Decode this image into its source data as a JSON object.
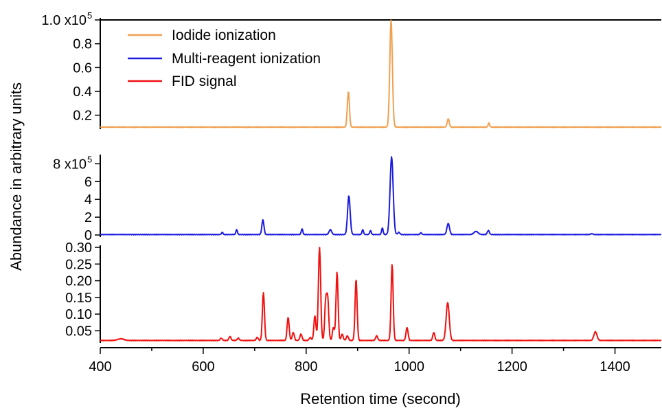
{
  "chart_data": {
    "type": "line",
    "xlabel": "Retention time (second)",
    "ylabel": "Abundance in arbitrary units",
    "xlim": [
      400,
      1490
    ],
    "xticks": [
      400,
      600,
      800,
      1000,
      1200,
      1400
    ],
    "xtick_labels": [
      "400",
      "600",
      "800",
      "1000",
      "1200",
      "1400"
    ],
    "legend": {
      "placement": "top-left",
      "entries": [
        {
          "label": "Iodide ionization",
          "color": "#F0A050"
        },
        {
          "label": "Multi-reagent ionization",
          "color": "#1A1AE0"
        },
        {
          "label": "FID signal",
          "color": "#F01010"
        }
      ]
    },
    "panels": [
      {
        "series_label": "Iodide ionization",
        "color": "#F0A050",
        "ylim": [
          0.1,
          1.0
        ],
        "yticks": [
          0.2,
          0.4,
          0.6,
          0.8,
          1.0
        ],
        "ytick_labels": [
          "0.2",
          "0.4",
          "0.6",
          "0.8",
          "1.0 x10"
        ],
        "exponent_label": "5",
        "baseline": 0.1,
        "peaks": [
          {
            "x": 882,
            "y": 0.4,
            "w": 2
          },
          {
            "x": 965,
            "y": 1.0,
            "w": 2.5
          },
          {
            "x": 1076,
            "y": 0.17,
            "w": 2
          },
          {
            "x": 1155,
            "y": 0.135,
            "w": 1.5
          }
        ]
      },
      {
        "series_label": "Multi-reagent ionization",
        "color": "#1A1AE0",
        "ylim": [
          0,
          8.8
        ],
        "yticks": [
          0,
          2,
          4,
          6,
          8
        ],
        "ytick_labels": [
          "0",
          "2",
          "4",
          "6",
          "8 x10"
        ],
        "exponent_label": "5",
        "baseline": 0.05,
        "peaks": [
          {
            "x": 637,
            "y": 0.3,
            "w": 1.5
          },
          {
            "x": 665,
            "y": 0.6,
            "w": 1.5
          },
          {
            "x": 716,
            "y": 1.7,
            "w": 2
          },
          {
            "x": 792,
            "y": 0.7,
            "w": 1.5
          },
          {
            "x": 847,
            "y": 0.6,
            "w": 2.5
          },
          {
            "x": 883,
            "y": 4.4,
            "w": 2.5
          },
          {
            "x": 910,
            "y": 0.6,
            "w": 1.5
          },
          {
            "x": 925,
            "y": 0.5,
            "w": 1.5
          },
          {
            "x": 948,
            "y": 0.8,
            "w": 1.5
          },
          {
            "x": 966,
            "y": 8.8,
            "w": 3
          },
          {
            "x": 980,
            "y": 0.3,
            "w": 2
          },
          {
            "x": 1023,
            "y": 0.25,
            "w": 1.5
          },
          {
            "x": 1076,
            "y": 1.3,
            "w": 2.5
          },
          {
            "x": 1130,
            "y": 0.4,
            "w": 4
          },
          {
            "x": 1154,
            "y": 0.5,
            "w": 2
          },
          {
            "x": 1355,
            "y": 0.15,
            "w": 2
          }
        ]
      },
      {
        "series_label": "FID signal",
        "color": "#F01010",
        "ylim": [
          0.02,
          0.3
        ],
        "yticks": [
          0.05,
          0.1,
          0.15,
          0.2,
          0.25,
          0.3
        ],
        "ytick_labels": [
          "0.05",
          "0.10",
          "0.15",
          "0.20",
          "0.25",
          "0.30"
        ],
        "exponent_label": "",
        "baseline": 0.021,
        "peaks": [
          {
            "x": 440,
            "y": 0.026,
            "w": 6
          },
          {
            "x": 635,
            "y": 0.028,
            "w": 2
          },
          {
            "x": 652,
            "y": 0.033,
            "w": 2
          },
          {
            "x": 668,
            "y": 0.028,
            "w": 2
          },
          {
            "x": 705,
            "y": 0.03,
            "w": 2
          },
          {
            "x": 717,
            "y": 0.165,
            "w": 2
          },
          {
            "x": 765,
            "y": 0.09,
            "w": 2
          },
          {
            "x": 775,
            "y": 0.045,
            "w": 2
          },
          {
            "x": 790,
            "y": 0.04,
            "w": 2
          },
          {
            "x": 808,
            "y": 0.03,
            "w": 2
          },
          {
            "x": 817,
            "y": 0.095,
            "w": 2
          },
          {
            "x": 826,
            "y": 0.3,
            "w": 2.2
          },
          {
            "x": 838,
            "y": 0.135,
            "w": 2
          },
          {
            "x": 842,
            "y": 0.14,
            "w": 2
          },
          {
            "x": 853,
            "y": 0.06,
            "w": 2
          },
          {
            "x": 860,
            "y": 0.225,
            "w": 2
          },
          {
            "x": 870,
            "y": 0.04,
            "w": 2
          },
          {
            "x": 880,
            "y": 0.035,
            "w": 2
          },
          {
            "x": 897,
            "y": 0.205,
            "w": 2
          },
          {
            "x": 937,
            "y": 0.035,
            "w": 2
          },
          {
            "x": 967,
            "y": 0.25,
            "w": 2
          },
          {
            "x": 996,
            "y": 0.06,
            "w": 2
          },
          {
            "x": 1048,
            "y": 0.045,
            "w": 2
          },
          {
            "x": 1075,
            "y": 0.135,
            "w": 3
          },
          {
            "x": 1362,
            "y": 0.047,
            "w": 3
          }
        ]
      }
    ]
  }
}
